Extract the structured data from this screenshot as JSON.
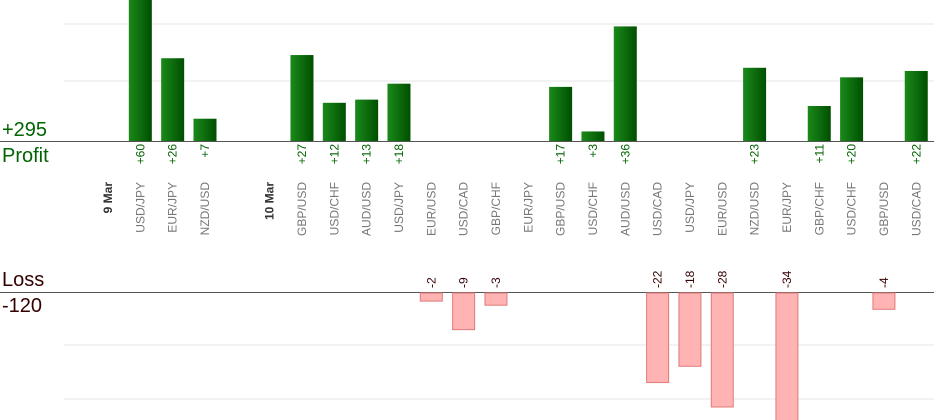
{
  "summary": {
    "profit_total": "+295",
    "profit_label": "Profit",
    "loss_label": "Loss",
    "loss_total": "-120"
  },
  "colors": {
    "profit_text": "#006400",
    "profit_bar_light": "#1a8a1a",
    "profit_bar_dark": "#004f00",
    "loss_text": "#330000",
    "loss_bar_fill": "#ffb3b3",
    "loss_bar_stroke": "#e07a7a",
    "axis_line": "#555555",
    "grid": "#e6e6e6",
    "pair_text": "#777777",
    "date_text": "#333333"
  },
  "chart_data": {
    "type": "bar",
    "profit_axis_visible_max": 60,
    "loss_axis_visible_max": 28,
    "grid": true,
    "columns": [
      {
        "kind": "date",
        "label": "9 Mar"
      },
      {
        "kind": "trade",
        "pair": "USD/JPY",
        "value": 60,
        "label": "+60"
      },
      {
        "kind": "trade",
        "pair": "EUR/JPY",
        "value": 26,
        "label": "+26"
      },
      {
        "kind": "trade",
        "pair": "NZD/USD",
        "value": 7,
        "label": "+7"
      },
      {
        "kind": "spacer"
      },
      {
        "kind": "date",
        "label": "10 Mar"
      },
      {
        "kind": "trade",
        "pair": "GBP/USD",
        "value": 27,
        "label": "+27"
      },
      {
        "kind": "trade",
        "pair": "USD/CHF",
        "value": 12,
        "label": "+12"
      },
      {
        "kind": "trade",
        "pair": "AUD/USD",
        "value": 13,
        "label": "+13"
      },
      {
        "kind": "trade",
        "pair": "USD/JPY",
        "value": 18,
        "label": "+18"
      },
      {
        "kind": "trade",
        "pair": "EUR/USD",
        "value": -2,
        "label": "-2"
      },
      {
        "kind": "trade",
        "pair": "USD/CAD",
        "value": -9,
        "label": "-9"
      },
      {
        "kind": "trade",
        "pair": "GBP/CHF",
        "value": -3,
        "label": "-3"
      },
      {
        "kind": "trade",
        "pair": "EUR/JPY",
        "value": 0,
        "label": ""
      },
      {
        "kind": "trade",
        "pair": "GBP/USD",
        "value": 17,
        "label": "+17"
      },
      {
        "kind": "trade",
        "pair": "USD/CHF",
        "value": 3,
        "label": "+3"
      },
      {
        "kind": "trade",
        "pair": "AUD/USD",
        "value": 36,
        "label": "+36"
      },
      {
        "kind": "trade",
        "pair": "USD/CAD",
        "value": -22,
        "label": "-22"
      },
      {
        "kind": "trade",
        "pair": "USD/JPY",
        "value": -18,
        "label": "-18"
      },
      {
        "kind": "trade",
        "pair": "EUR/USD",
        "value": -28,
        "label": "-28"
      },
      {
        "kind": "trade",
        "pair": "NZD/USD",
        "value": 23,
        "label": "+23"
      },
      {
        "kind": "trade",
        "pair": "EUR/JPY",
        "value": -34,
        "label": "-34"
      },
      {
        "kind": "trade",
        "pair": "GBP/CHF",
        "value": 11,
        "label": "+11"
      },
      {
        "kind": "trade",
        "pair": "USD/CHF",
        "value": 20,
        "label": "+20"
      },
      {
        "kind": "trade",
        "pair": "GBP/USD",
        "value": -4,
        "label": "-4"
      },
      {
        "kind": "trade",
        "pair": "USD/CAD",
        "value": 22,
        "label": "+22"
      }
    ]
  }
}
